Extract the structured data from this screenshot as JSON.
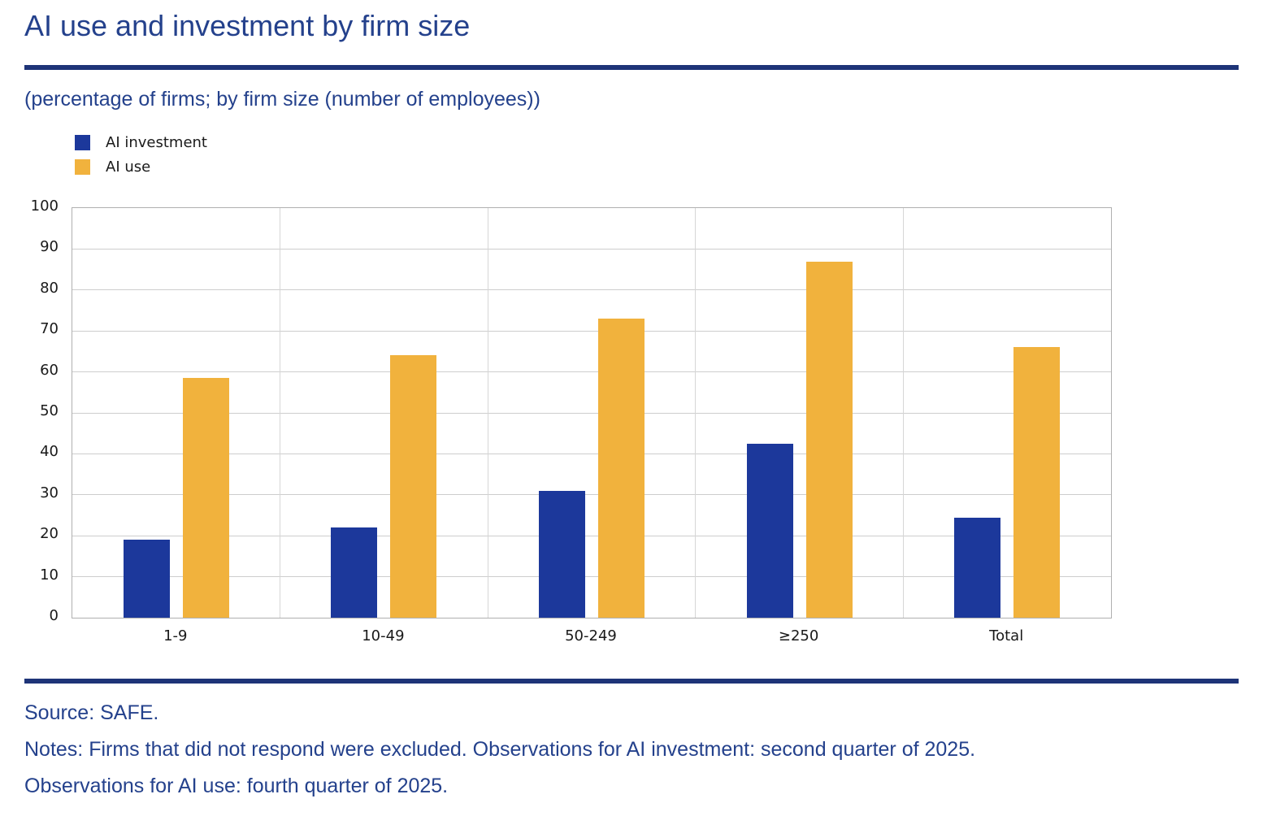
{
  "header": {
    "title": "AI use and investment by firm size",
    "subtitle": "(percentage of firms; by firm size (number of employees))"
  },
  "chart_data": {
    "type": "bar",
    "categories": [
      "1-9",
      "10-49",
      "50-249",
      "≥250",
      "Total"
    ],
    "series": [
      {
        "name": "AI investment",
        "color": "#1c389b",
        "values": [
          19,
          22,
          31,
          42.5,
          24.5
        ]
      },
      {
        "name": "AI use",
        "color": "#f1b23d",
        "values": [
          58.5,
          64,
          73,
          87,
          66
        ]
      }
    ],
    "title": "AI use and investment by firm size",
    "xlabel": "",
    "ylabel": "",
    "ylim": [
      0,
      100
    ],
    "ytick_step": 10,
    "grid": true,
    "legend_position": "top-left"
  },
  "footer": {
    "source": "Source: SAFE.",
    "notes_line1": "Notes: Firms that did not respond were excluded. Observations for AI investment: second quarter of 2025.",
    "notes_line2": "Observations for AI use: fourth quarter of 2025."
  },
  "colors": {
    "heading_text": "#24418c",
    "rule": "#1e3478",
    "chart_text": "#1a1a1a",
    "gridline": "#cdcdcd",
    "plot_border": "#b0b0b0",
    "ai_investment_bar": "#1c389b",
    "ai_use_bar": "#f1b23d"
  }
}
